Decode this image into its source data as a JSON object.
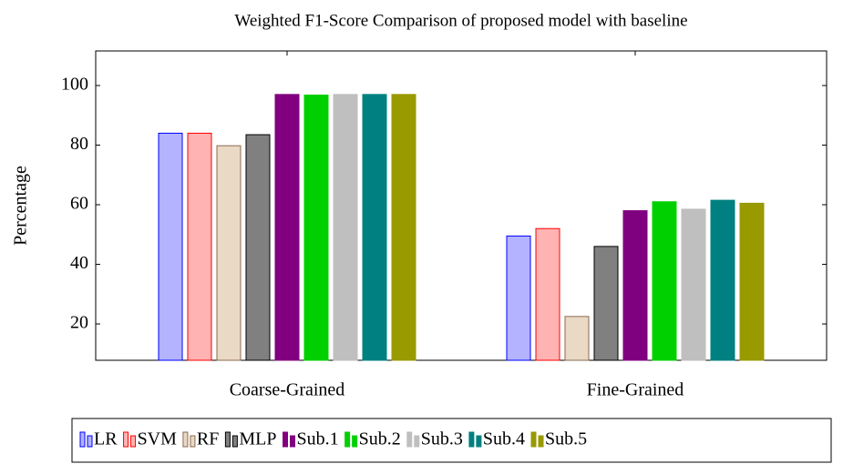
{
  "chart_data": {
    "type": "bar",
    "title": "Weighted F1-Score Comparison of proposed model with baseline",
    "ylabel": "Percentage",
    "categories": [
      "Coarse-Grained",
      "Fine-Grained"
    ],
    "series": [
      {
        "name": "LR",
        "color": "#b3b3ff",
        "stroke": "#0000ff",
        "values": [
          84,
          49.5
        ]
      },
      {
        "name": "SVM",
        "color": "#ffb3b3",
        "stroke": "#ff0000",
        "values": [
          84,
          52
        ]
      },
      {
        "name": "RF",
        "color": "#ead9c5",
        "stroke": "#8b6a4e",
        "values": [
          79.8,
          22.5
        ]
      },
      {
        "name": "MLP",
        "color": "#808080",
        "stroke": "#000000",
        "values": [
          83.5,
          46
        ]
      },
      {
        "name": "Sub.1",
        "color": "#800080",
        "stroke": "#800080",
        "values": [
          97,
          58
        ]
      },
      {
        "name": "Sub.2",
        "color": "#00d000",
        "stroke": "#00d000",
        "values": [
          96.8,
          61
        ]
      },
      {
        "name": "Sub.3",
        "color": "#bfbfbf",
        "stroke": "#bfbfbf",
        "values": [
          97,
          58.5
        ]
      },
      {
        "name": "Sub.4",
        "color": "#008080",
        "stroke": "#008080",
        "values": [
          97,
          61.5
        ]
      },
      {
        "name": "Sub.5",
        "color": "#999900",
        "stroke": "#999900",
        "values": [
          97,
          60.5
        ]
      }
    ],
    "ylim": [
      7.8,
      111.6
    ],
    "yticks": [
      20,
      40,
      60,
      80,
      100
    ],
    "legend": "bottom"
  }
}
